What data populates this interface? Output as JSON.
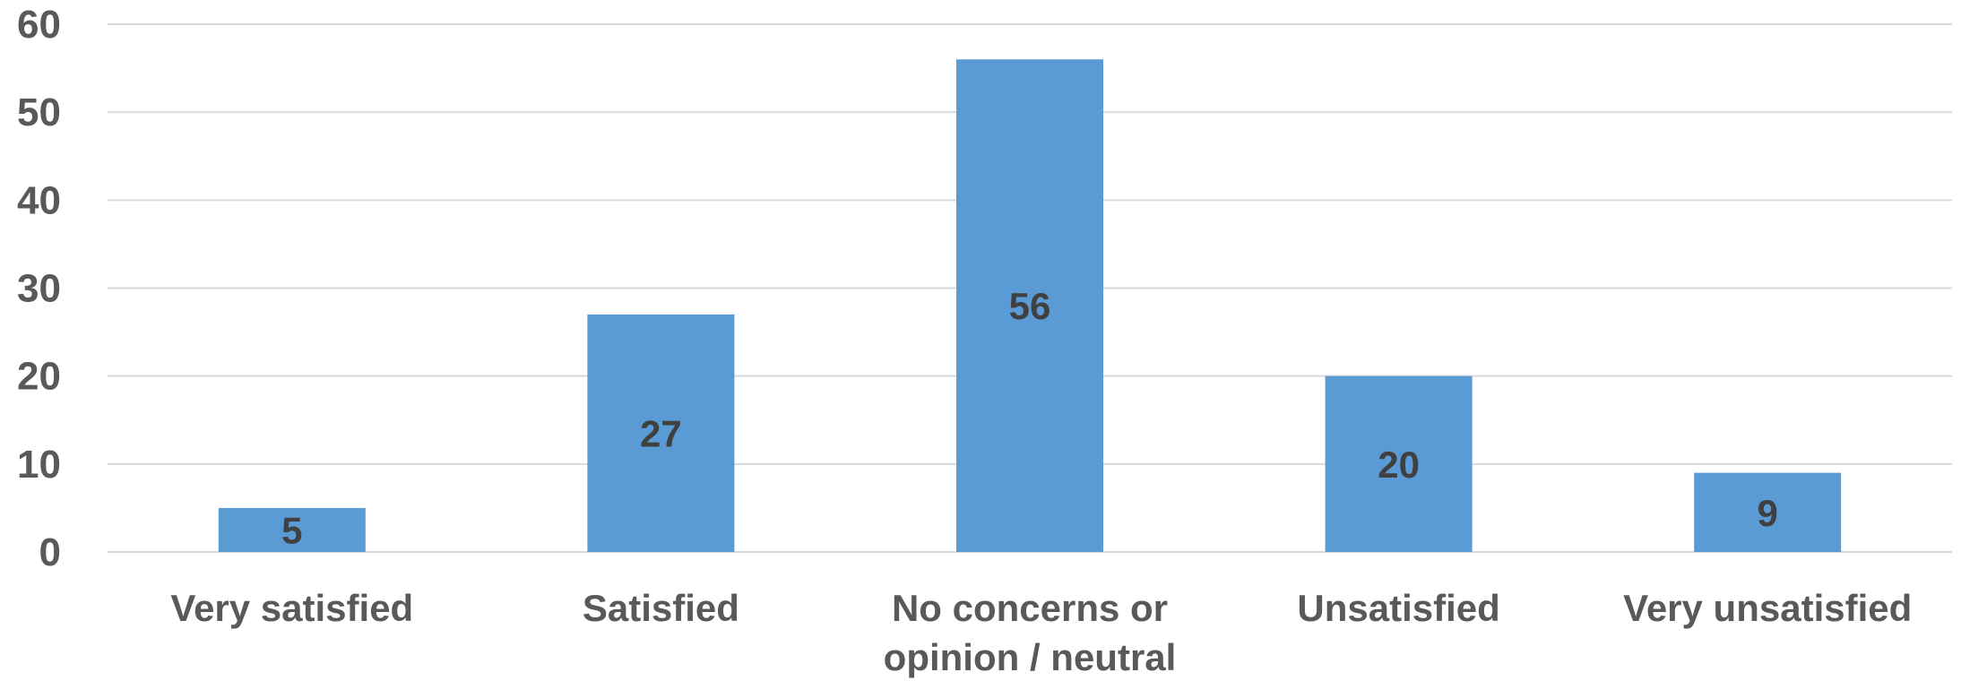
{
  "chart_data": {
    "type": "bar",
    "title": "",
    "xlabel": "",
    "ylabel": "",
    "categories": [
      [
        "Very satisfied"
      ],
      [
        "Satisfied"
      ],
      [
        "No concerns or",
        "opinion / neutral"
      ],
      [
        "Unsatisfied"
      ],
      [
        "Very unsatisfied"
      ]
    ],
    "values": [
      5,
      27,
      56,
      20,
      9
    ],
    "ylim": [
      0,
      60
    ],
    "yticks": [
      0,
      10,
      20,
      30,
      40,
      50,
      60
    ],
    "grid": true,
    "legend": "none",
    "bar_color": "#5b9bd5",
    "data_labels": true
  }
}
